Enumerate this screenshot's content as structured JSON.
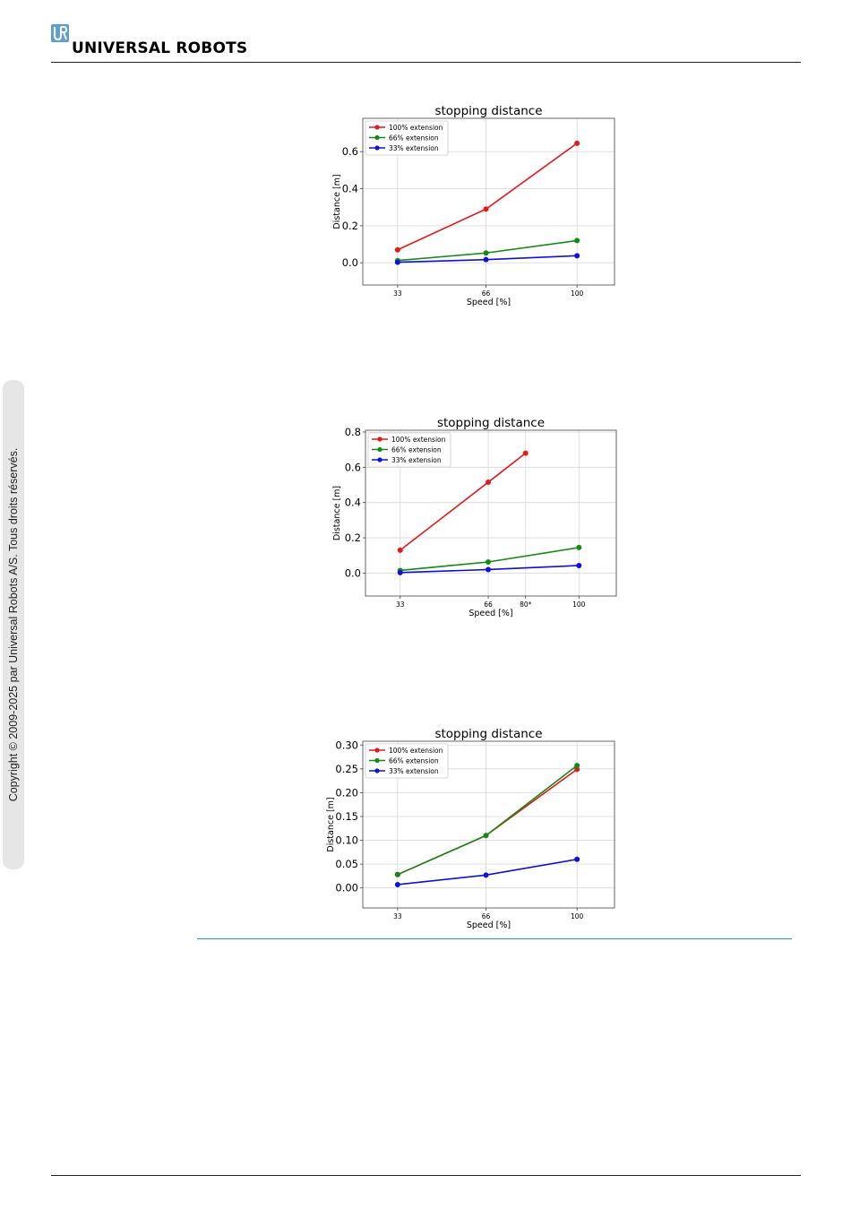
{
  "header": {
    "logo_text": "UNIVERSAL ROBOTS",
    "logo_color": "#5a9fd4"
  },
  "sidebar": {
    "copyright": "Copyright © 2009-2025 par Universal Robots A/S. Tous droits réservés."
  },
  "colors": {
    "red": "#e31a1c",
    "green": "#138a13",
    "blue": "#1010d8",
    "rule_blue": "#2b8fd6"
  },
  "chart_data": [
    {
      "type": "line",
      "title": "stopping distance",
      "xlabel": "Speed [%]",
      "ylabel": "Distance [m]",
      "x": [
        33,
        66,
        100
      ],
      "x_ticks": [
        33,
        66,
        100
      ],
      "x_tick_labels": [
        "33",
        "66",
        "100"
      ],
      "xlim": [
        20,
        114
      ],
      "ylim": [
        -0.12,
        0.78
      ],
      "y_ticks": [
        0.0,
        0.2,
        0.4,
        0.6
      ],
      "y_tick_labels": [
        "0.0",
        "0.2",
        "0.4",
        "0.6"
      ],
      "grid": true,
      "legend": "top-left",
      "series": [
        {
          "name": "100% extension",
          "color": "#e31a1c",
          "x": [
            33,
            66,
            100
          ],
          "values": [
            0.07,
            0.29,
            0.645
          ]
        },
        {
          "name": "66% extension",
          "color": "#138a13",
          "x": [
            33,
            66,
            100
          ],
          "values": [
            0.012,
            0.053,
            0.12
          ]
        },
        {
          "name": "33% extension",
          "color": "#1010d8",
          "x": [
            33,
            66,
            100
          ],
          "values": [
            0.003,
            0.017,
            0.038
          ]
        }
      ]
    },
    {
      "type": "line",
      "title": "stopping distance",
      "xlabel": "Speed [%]",
      "ylabel": "Distance [m]",
      "x_ticks": [
        33,
        66,
        80,
        100
      ],
      "x_tick_labels": [
        "33",
        "66",
        "80*",
        "100"
      ],
      "xlim": [
        20,
        114
      ],
      "ylim": [
        -0.13,
        0.81
      ],
      "y_ticks": [
        0.0,
        0.2,
        0.4,
        0.6,
        0.8
      ],
      "y_tick_labels": [
        "0.0",
        "0.2",
        "0.4",
        "0.6",
        "0.8"
      ],
      "grid": true,
      "legend": "top-left",
      "series": [
        {
          "name": "100% extension",
          "color": "#e31a1c",
          "x": [
            33,
            66,
            80
          ],
          "values": [
            0.13,
            0.515,
            0.68
          ]
        },
        {
          "name": "66% extension",
          "color": "#138a13",
          "x": [
            33,
            66,
            100
          ],
          "values": [
            0.015,
            0.063,
            0.145
          ]
        },
        {
          "name": "33% extension",
          "color": "#1010d8",
          "x": [
            33,
            66,
            100
          ],
          "values": [
            0.003,
            0.02,
            0.043
          ]
        }
      ]
    },
    {
      "type": "line",
      "title": "stopping distance",
      "xlabel": "Speed [%]",
      "ylabel": "Distance [m]",
      "x_ticks": [
        33,
        66,
        100
      ],
      "x_tick_labels": [
        "33",
        "66",
        "100"
      ],
      "xlim": [
        20,
        114
      ],
      "ylim": [
        -0.042,
        0.308
      ],
      "y_ticks": [
        0.0,
        0.05,
        0.1,
        0.15,
        0.2,
        0.25,
        0.3
      ],
      "y_tick_labels": [
        "0.00",
        "0.05",
        "0.10",
        "0.15",
        "0.20",
        "0.25",
        "0.30"
      ],
      "grid": true,
      "legend": "top-left",
      "series": [
        {
          "name": "100% extension",
          "color": "#e31a1c",
          "x": [
            33,
            66,
            100
          ],
          "values": [
            0.028,
            0.11,
            0.249
          ]
        },
        {
          "name": "66% extension",
          "color": "#138a13",
          "x": [
            33,
            66,
            100
          ],
          "values": [
            0.028,
            0.11,
            0.257
          ]
        },
        {
          "name": "33% extension",
          "color": "#1010d8",
          "x": [
            33,
            66,
            100
          ],
          "values": [
            0.007,
            0.027,
            0.06
          ]
        }
      ]
    }
  ]
}
